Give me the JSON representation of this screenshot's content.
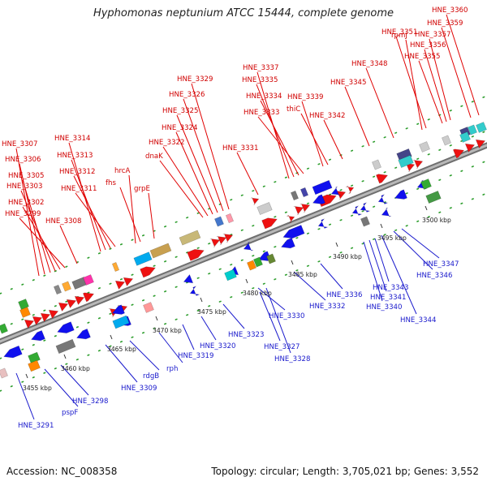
{
  "title": "Hyphomonas neptunium ATCC 15444, complete genome",
  "footer": {
    "accession": "Accession: NC_008358",
    "summary": "Topology: circular; Length: 3,705,021 bp; Genes: 3,552"
  },
  "scale_labels": [
    "3455 kbp",
    "3460 kbp",
    "3465 kbp",
    "3470 kbp",
    "3475 kbp",
    "3480 kbp",
    "3485 kbp",
    "3490 kbp",
    "3495 kbp",
    "3500 kbp"
  ],
  "colors": {
    "forward_label": "#d00000",
    "reverse_label": "#1a1acc",
    "backbone": "#8a8a8a",
    "dots": "#2e9e2e"
  },
  "forward_labels": [
    "HNE_3307",
    "HNE_3306",
    "HNE_3305",
    "HNE_3303",
    "HNE_3302",
    "HNE_3299",
    "HNE_3308",
    "HNE_3314",
    "HNE_3313",
    "HNE_3312",
    "HNE_3311",
    "hrcA",
    "fhs",
    "grpE",
    "dnaK",
    "HNE_3322",
    "HNE_3324",
    "HNE_3325",
    "HNE_3326",
    "HNE_3329",
    "HNE_3331",
    "HNE_3337",
    "HNE_3335",
    "HNE_3334",
    "HNE_3333",
    "HNE_3339",
    "thiC",
    "HNE_3342",
    "HNE_3345",
    "HNE_3348",
    "rpmJ",
    "HNE_3351",
    "HNE_3357",
    "HNE_3356",
    "HNE_3355",
    "HNE_3360",
    "HNE_3359"
  ],
  "reverse_labels": [
    "HNE_3291",
    "pspF",
    "HNE_3298",
    "HNE_3309",
    "rdgB",
    "rph",
    "HNE_3319",
    "HNE_3320",
    "HNE_3323",
    "HNE_3327",
    "HNE_3328",
    "HNE_3330",
    "HNE_3332",
    "HNE_3336",
    "HNE_3340",
    "HNE_3341",
    "HNE_3343",
    "HNE_3344",
    "HNE_3346",
    "HNE_3347"
  ]
}
